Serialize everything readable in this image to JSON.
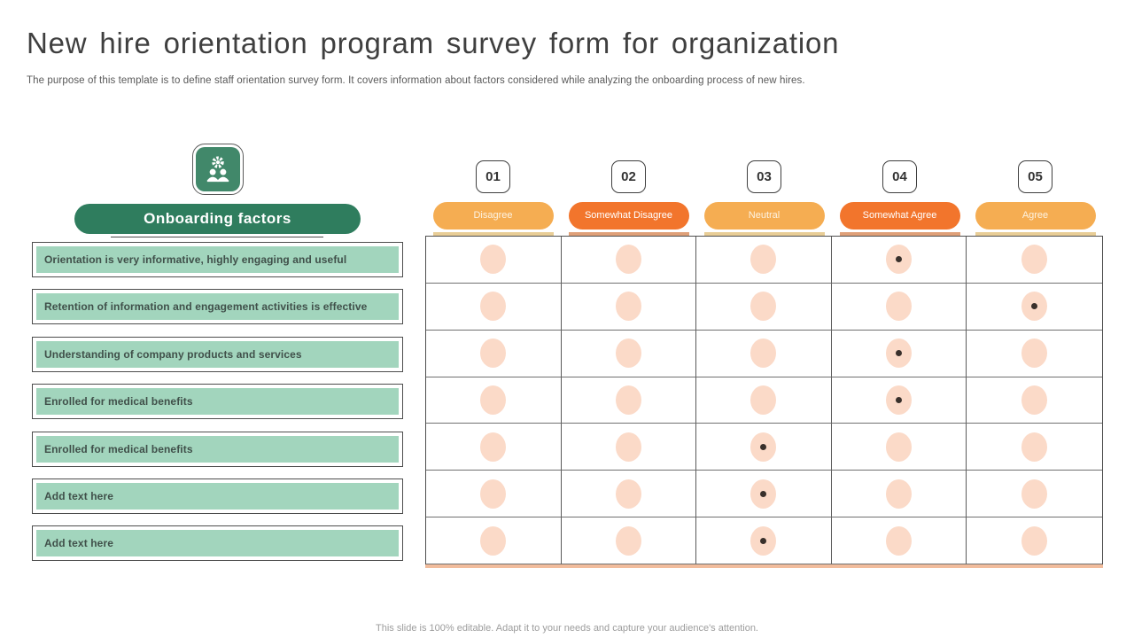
{
  "slide": {
    "title": "New hire orientation program survey form for organization",
    "subtitle": "The purpose of this template is to define staff orientation survey form. It covers information about factors considered while analyzing the onboarding process of new hires.",
    "footer": "This slide is 100% editable. Adapt it to your needs and capture your audience's attention."
  },
  "survey": {
    "header": {
      "label": "Onboarding factors",
      "icon": "team-settings-icon"
    },
    "columns": [
      {
        "number": "01",
        "label": "Disagree",
        "tone": "light"
      },
      {
        "number": "02",
        "label": "Somewhat Disagree",
        "tone": "dark"
      },
      {
        "number": "03",
        "label": "Neutral",
        "tone": "light"
      },
      {
        "number": "04",
        "label": "Somewhat Agree",
        "tone": "dark"
      },
      {
        "number": "05",
        "label": "Agree",
        "tone": "light"
      }
    ],
    "rows": [
      {
        "label": "Orientation is very informative, highly engaging and useful",
        "selected": 4
      },
      {
        "label": "Retention of information and engagement activities is effective",
        "selected": 5
      },
      {
        "label": "Understanding of company products and services",
        "selected": 4
      },
      {
        "label": "Enrolled for medical benefits",
        "selected": 4
      },
      {
        "label": "Enrolled for medical benefits",
        "selected": 3
      },
      {
        "label": "Add text here",
        "selected": 3
      },
      {
        "label": "Add text here",
        "selected": 3
      }
    ]
  },
  "colors": {
    "dark_green": "#2F7D5E",
    "icon_green": "#41886A",
    "light_green": "#A2D5BD",
    "light_orange": "#F5AD52",
    "dark_orange": "#F2752C",
    "peach_circle": "#FBDAC8",
    "bottom_accent": "#F1BC9C"
  }
}
